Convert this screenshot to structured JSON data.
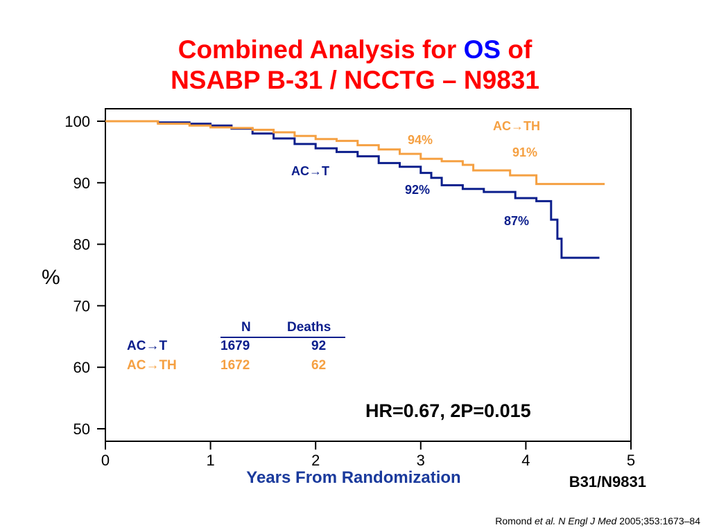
{
  "title": {
    "line1_pre": "Combined Analysis for ",
    "line1_os": "OS",
    "line1_post": " of",
    "line2": "NSABP B-31 / NCCTG – N9831"
  },
  "colors": {
    "title": "#ff0000",
    "os": "#0000ff",
    "act": "#0b1e8c",
    "acth": "#f5a042"
  },
  "chart_data": {
    "type": "line",
    "step": true,
    "xlabel": "Years From Randomization",
    "ylabel": "%",
    "xlim": [
      0,
      5
    ],
    "ylim": [
      50,
      100
    ],
    "x_ticks": [
      "0",
      "1",
      "2",
      "3",
      "4",
      "5"
    ],
    "y_ticks": [
      "100",
      "90",
      "80",
      "70",
      "60",
      "50"
    ],
    "grid": false,
    "series": [
      {
        "name": "AC→T",
        "color": "#0b1e8c",
        "points": [
          [
            0,
            100
          ],
          [
            0.5,
            99.8
          ],
          [
            0.8,
            99.6
          ],
          [
            1.0,
            99.3
          ],
          [
            1.2,
            98.8
          ],
          [
            1.4,
            98.0
          ],
          [
            1.6,
            97.2
          ],
          [
            1.8,
            96.3
          ],
          [
            2.0,
            95.6
          ],
          [
            2.2,
            95.0
          ],
          [
            2.4,
            94.3
          ],
          [
            2.6,
            93.2
          ],
          [
            2.8,
            92.6
          ],
          [
            3.0,
            91.6
          ],
          [
            3.1,
            90.8
          ],
          [
            3.2,
            89.6
          ],
          [
            3.4,
            89.0
          ],
          [
            3.6,
            88.5
          ],
          [
            3.9,
            87.5
          ],
          [
            4.1,
            87.0
          ],
          [
            4.24,
            86.4
          ],
          [
            4.24,
            84.0
          ],
          [
            4.3,
            84.0
          ],
          [
            4.3,
            80.9
          ],
          [
            4.34,
            80.9
          ],
          [
            4.34,
            77.8
          ],
          [
            4.7,
            77.8
          ]
        ]
      },
      {
        "name": "AC→TH",
        "color": "#f5a042",
        "points": [
          [
            0,
            100
          ],
          [
            0.5,
            99.6
          ],
          [
            0.8,
            99.3
          ],
          [
            1.0,
            99.0
          ],
          [
            1.2,
            98.9
          ],
          [
            1.4,
            98.6
          ],
          [
            1.6,
            98.2
          ],
          [
            1.8,
            97.6
          ],
          [
            2.0,
            97.1
          ],
          [
            2.2,
            96.8
          ],
          [
            2.4,
            96.1
          ],
          [
            2.6,
            95.4
          ],
          [
            2.8,
            94.7
          ],
          [
            3.0,
            93.9
          ],
          [
            3.2,
            93.5
          ],
          [
            3.4,
            92.9
          ],
          [
            3.5,
            92.0
          ],
          [
            3.85,
            92.0
          ],
          [
            3.85,
            91.2
          ],
          [
            4.1,
            91.2
          ],
          [
            4.1,
            89.8
          ],
          [
            4.75,
            89.8
          ]
        ]
      }
    ],
    "annotations": {
      "act_label": "AC",
      "act_label_t": "T",
      "act_92": "92%",
      "act_87": "87%",
      "acth_label": "AC",
      "acth_label_th": "TH",
      "acth_94": "94%",
      "acth_91": "91%",
      "arrow": "→"
    },
    "table": {
      "header_n": "N",
      "header_deaths": "Deaths",
      "rows": [
        {
          "arm": "AC",
          "arm_suffix": "T",
          "n": "1679",
          "deaths": "92"
        },
        {
          "arm": "AC",
          "arm_suffix": "TH",
          "n": "1672",
          "deaths": "62"
        }
      ]
    },
    "stats": "HR=0.67, 2P=0.015"
  },
  "source_label": "B31/N9831",
  "citation": {
    "author": "Romond ",
    "etal": "et al.",
    "journal": " N Engl J Med",
    "ref": " 2005;353:1673–84"
  }
}
